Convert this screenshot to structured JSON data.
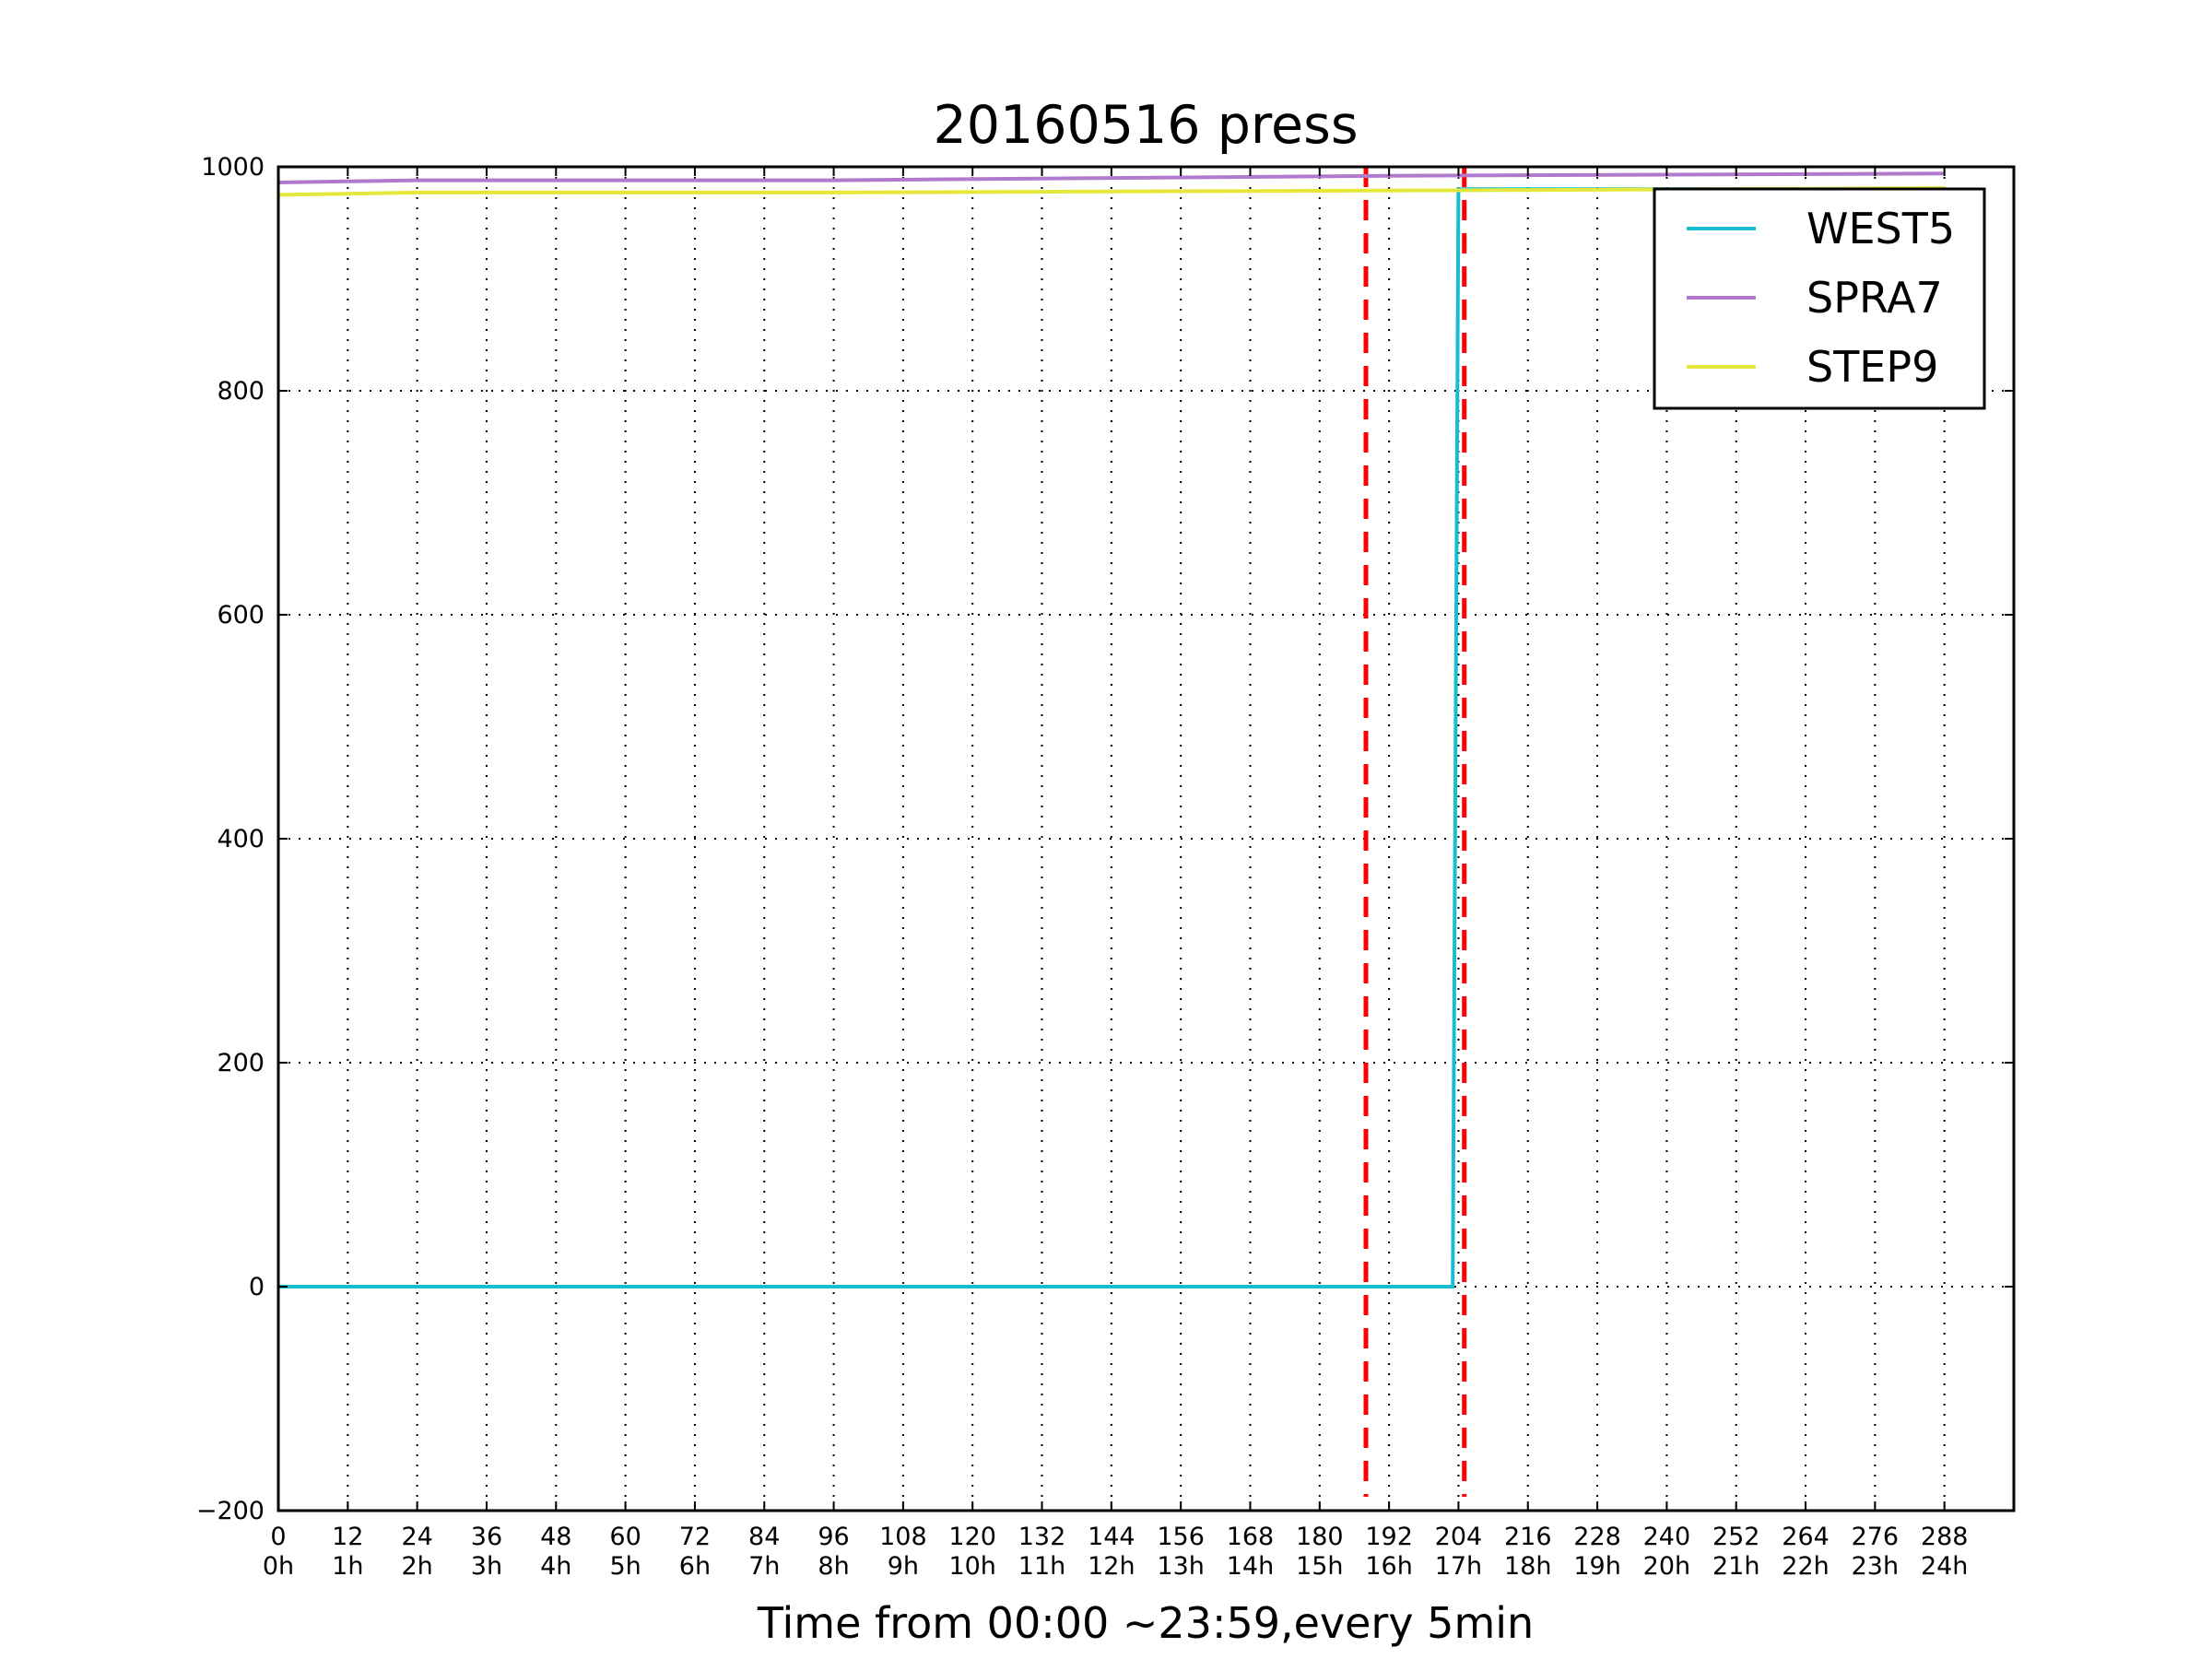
{
  "chart_data": {
    "type": "line",
    "title": "20160516 press",
    "xlabel": "Time from 00:00 ~23:59,every 5min",
    "ylabel": "",
    "xlim": [
      0,
      300
    ],
    "ylim": [
      -200,
      1000
    ],
    "grid": true,
    "grid_style": "dotted",
    "legend_position": "top-right",
    "x_ticks": [
      {
        "value": 0,
        "label": "0",
        "sublabel": "0h"
      },
      {
        "value": 12,
        "label": "12",
        "sublabel": "1h"
      },
      {
        "value": 24,
        "label": "24",
        "sublabel": "2h"
      },
      {
        "value": 36,
        "label": "36",
        "sublabel": "3h"
      },
      {
        "value": 48,
        "label": "48",
        "sublabel": "4h"
      },
      {
        "value": 60,
        "label": "60",
        "sublabel": "5h"
      },
      {
        "value": 72,
        "label": "72",
        "sublabel": "6h"
      },
      {
        "value": 84,
        "label": "84",
        "sublabel": "7h"
      },
      {
        "value": 96,
        "label": "96",
        "sublabel": "8h"
      },
      {
        "value": 108,
        "label": "108",
        "sublabel": "9h"
      },
      {
        "value": 120,
        "label": "120",
        "sublabel": "10h"
      },
      {
        "value": 132,
        "label": "132",
        "sublabel": "11h"
      },
      {
        "value": 144,
        "label": "144",
        "sublabel": "12h"
      },
      {
        "value": 156,
        "label": "156",
        "sublabel": "13h"
      },
      {
        "value": 168,
        "label": "168",
        "sublabel": "14h"
      },
      {
        "value": 180,
        "label": "180",
        "sublabel": "15h"
      },
      {
        "value": 192,
        "label": "192",
        "sublabel": "16h"
      },
      {
        "value": 204,
        "label": "204",
        "sublabel": "17h"
      },
      {
        "value": 216,
        "label": "216",
        "sublabel": "18h"
      },
      {
        "value": 228,
        "label": "228",
        "sublabel": "19h"
      },
      {
        "value": 240,
        "label": "240",
        "sublabel": "20h"
      },
      {
        "value": 252,
        "label": "252",
        "sublabel": "21h"
      },
      {
        "value": 264,
        "label": "264",
        "sublabel": "22h"
      },
      {
        "value": 276,
        "label": "276",
        "sublabel": "23h"
      },
      {
        "value": 288,
        "label": "288",
        "sublabel": "24h"
      }
    ],
    "y_ticks": [
      {
        "value": -200,
        "label": "−200"
      },
      {
        "value": 0,
        "label": "0"
      },
      {
        "value": 200,
        "label": "200"
      },
      {
        "value": 400,
        "label": "400"
      },
      {
        "value": 600,
        "label": "600"
      },
      {
        "value": 800,
        "label": "800"
      },
      {
        "value": 1000,
        "label": "1000"
      }
    ],
    "series": [
      {
        "name": "WEST5",
        "color": "#17becf",
        "points": [
          [
            0,
            0
          ],
          [
            203,
            0
          ],
          [
            204,
            980
          ],
          [
            288,
            980
          ]
        ]
      },
      {
        "name": "SPRA7",
        "color": "#b27acc",
        "points": [
          [
            0,
            986
          ],
          [
            12,
            987
          ],
          [
            24,
            988
          ],
          [
            48,
            988
          ],
          [
            96,
            988
          ],
          [
            144,
            990
          ],
          [
            192,
            992
          ],
          [
            240,
            993
          ],
          [
            288,
            994
          ]
        ]
      },
      {
        "name": "STEP9",
        "color": "#e5e83a",
        "points": [
          [
            0,
            975
          ],
          [
            24,
            977
          ],
          [
            96,
            977
          ],
          [
            144,
            978
          ],
          [
            204,
            979
          ],
          [
            288,
            981
          ]
        ]
      }
    ],
    "vertical_markers": [
      {
        "x": 188,
        "color": "#ff0000",
        "style": "dashed"
      },
      {
        "x": 205,
        "color": "#ff0000",
        "style": "dashed"
      }
    ]
  }
}
